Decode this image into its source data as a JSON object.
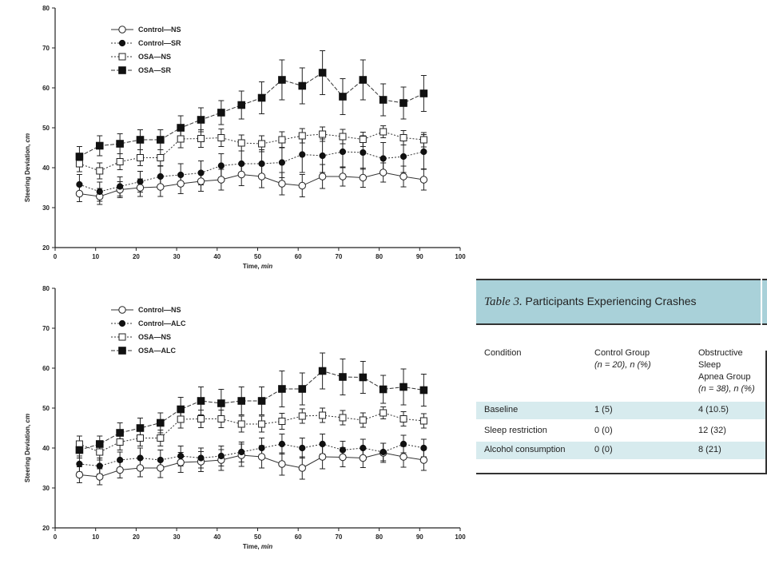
{
  "chart_data": [
    {
      "type": "line",
      "title": "",
      "xlabel_parts": [
        "Time, ",
        "min"
      ],
      "ylabel_parts": [
        "Steering Deviation, ",
        "cm"
      ],
      "xlim": [
        0,
        100
      ],
      "ylim": [
        20,
        80
      ],
      "xticks": [
        0,
        10,
        20,
        30,
        40,
        50,
        60,
        70,
        80,
        90,
        100
      ],
      "yticks": [
        20,
        30,
        40,
        50,
        60,
        70,
        80
      ],
      "x": [
        6,
        11,
        16,
        21,
        26,
        31,
        36,
        41,
        46,
        51,
        56,
        61,
        66,
        71,
        76,
        81,
        86,
        91
      ],
      "legend_position": "top-left",
      "series": [
        {
          "name": "Control—NS",
          "marker": "open-circle",
          "line": "solid",
          "values": [
            33.5,
            32.8,
            34.5,
            35.0,
            35.2,
            36.0,
            36.6,
            37.0,
            38.3,
            37.8,
            36.0,
            35.5,
            37.8,
            37.8,
            37.5,
            38.8,
            37.8,
            37.0
          ],
          "errors": [
            2.0,
            2.0,
            2.0,
            2.2,
            2.4,
            2.5,
            2.5,
            2.6,
            2.8,
            2.8,
            2.8,
            2.8,
            3.0,
            2.4,
            2.4,
            2.4,
            2.6,
            2.6
          ]
        },
        {
          "name": "Control—SR",
          "marker": "filled-circle",
          "line": "dotted",
          "values": [
            35.8,
            34.0,
            35.3,
            36.5,
            37.8,
            38.2,
            38.7,
            40.5,
            41.0,
            41.0,
            41.3,
            43.3,
            43.0,
            44.0,
            43.8,
            42.3,
            42.8,
            44.0
          ],
          "errors": [
            2.5,
            2.4,
            2.4,
            2.6,
            2.6,
            2.8,
            3.0,
            3.0,
            3.2,
            3.5,
            3.8,
            4.5,
            4.2,
            4.0,
            4.2,
            4.0,
            4.0,
            4.3
          ]
        },
        {
          "name": "OSA—NS",
          "marker": "open-square",
          "line": "dotted",
          "values": [
            41.0,
            39.2,
            41.5,
            42.5,
            42.5,
            47.2,
            47.3,
            47.5,
            46.2,
            46.0,
            47.0,
            48.0,
            48.4,
            47.8,
            47.1,
            49.0,
            47.5,
            47.0
          ],
          "errors": [
            2.0,
            2.0,
            2.0,
            2.0,
            2.0,
            2.2,
            2.2,
            2.2,
            2.0,
            2.0,
            2.0,
            1.8,
            1.8,
            1.8,
            1.8,
            1.5,
            1.8,
            1.8
          ]
        },
        {
          "name": "OSA—SR",
          "marker": "filled-square",
          "line": "dashed",
          "values": [
            42.8,
            45.5,
            46.0,
            47.0,
            47.0,
            50.0,
            52.0,
            53.8,
            55.7,
            57.5,
            62.0,
            60.5,
            63.8,
            57.8,
            62.0,
            57.0,
            56.2,
            58.6
          ],
          "errors": [
            2.5,
            2.5,
            2.5,
            2.5,
            2.5,
            3.0,
            3.0,
            3.0,
            3.5,
            4.0,
            5.0,
            4.5,
            5.5,
            4.5,
            5.0,
            4.0,
            4.0,
            4.5
          ]
        }
      ]
    },
    {
      "type": "line",
      "title": "",
      "xlabel_parts": [
        "Time, ",
        "min"
      ],
      "ylabel_parts": [
        "Steering Deviation, ",
        "cm"
      ],
      "xlim": [
        0,
        100
      ],
      "ylim": [
        20,
        80
      ],
      "xticks": [
        0,
        10,
        20,
        30,
        40,
        50,
        60,
        70,
        80,
        90,
        100
      ],
      "yticks": [
        20,
        30,
        40,
        50,
        60,
        70,
        80
      ],
      "x": [
        6,
        11,
        16,
        21,
        26,
        31,
        36,
        41,
        46,
        51,
        56,
        61,
        66,
        71,
        76,
        81,
        86,
        91
      ],
      "legend_position": "top-left",
      "series": [
        {
          "name": "Control—NS",
          "marker": "open-circle",
          "line": "solid",
          "values": [
            33.3,
            32.8,
            34.5,
            35.0,
            35.0,
            36.4,
            36.6,
            37.0,
            38.2,
            37.8,
            36.0,
            35.0,
            37.8,
            37.7,
            37.5,
            38.8,
            37.8,
            37.0
          ],
          "errors": [
            2.0,
            2.0,
            2.0,
            2.2,
            2.4,
            2.5,
            2.5,
            2.6,
            2.8,
            2.8,
            2.8,
            2.8,
            3.0,
            2.4,
            2.4,
            2.4,
            2.6,
            2.6
          ]
        },
        {
          "name": "Control—ALC",
          "marker": "filled-circle",
          "line": "dotted",
          "values": [
            36.0,
            35.5,
            37.0,
            37.5,
            37.0,
            38.0,
            37.5,
            38.0,
            39.0,
            40.0,
            41.0,
            40.0,
            41.0,
            39.5,
            40.0,
            39.0,
            41.0,
            40.0
          ],
          "errors": [
            2.0,
            2.0,
            2.0,
            2.5,
            2.5,
            2.5,
            2.5,
            2.5,
            2.5,
            2.5,
            2.5,
            2.5,
            2.5,
            2.2,
            2.2,
            2.2,
            2.2,
            2.2
          ]
        },
        {
          "name": "OSA—NS",
          "marker": "open-square",
          "line": "dotted",
          "values": [
            41.0,
            39.0,
            41.5,
            42.5,
            42.5,
            47.2,
            47.3,
            47.3,
            46.0,
            46.0,
            46.7,
            48.0,
            48.2,
            47.6,
            47.0,
            48.8,
            47.3,
            46.8
          ],
          "errors": [
            2.0,
            2.0,
            2.0,
            2.0,
            2.0,
            2.2,
            2.2,
            2.2,
            2.0,
            2.0,
            2.0,
            1.8,
            1.8,
            1.8,
            1.8,
            1.5,
            1.8,
            1.8
          ]
        },
        {
          "name": "OSA—ALC",
          "marker": "filled-square",
          "line": "dashed",
          "values": [
            39.5,
            41.0,
            43.8,
            45.0,
            46.3,
            49.7,
            51.8,
            51.2,
            51.8,
            51.8,
            54.8,
            54.8,
            59.3,
            57.8,
            57.7,
            54.7,
            55.3,
            54.5
          ],
          "errors": [
            2.0,
            2.0,
            2.5,
            2.5,
            2.5,
            3.0,
            3.5,
            3.5,
            3.5,
            3.5,
            4.5,
            4.0,
            4.5,
            4.5,
            4.0,
            3.5,
            4.5,
            4.0
          ]
        }
      ]
    },
    {
      "type": "table",
      "title_label": "Table 3.",
      "title_text": "Participants Experiencing Crashes",
      "headers": [
        [
          "Condition"
        ],
        [
          "Control Group",
          "(n = 20), n (%)"
        ],
        [
          "Obstructive Sleep",
          "Apnea Group",
          "(n = 38), n (%)"
        ]
      ],
      "rows": [
        [
          "Baseline",
          "1 (5)",
          "4 (10.5)"
        ],
        [
          "Sleep restriction",
          "0 (0)",
          "12 (32)"
        ],
        [
          "Alcohol consumption",
          "0 (0)",
          "8 (21)"
        ]
      ]
    }
  ]
}
